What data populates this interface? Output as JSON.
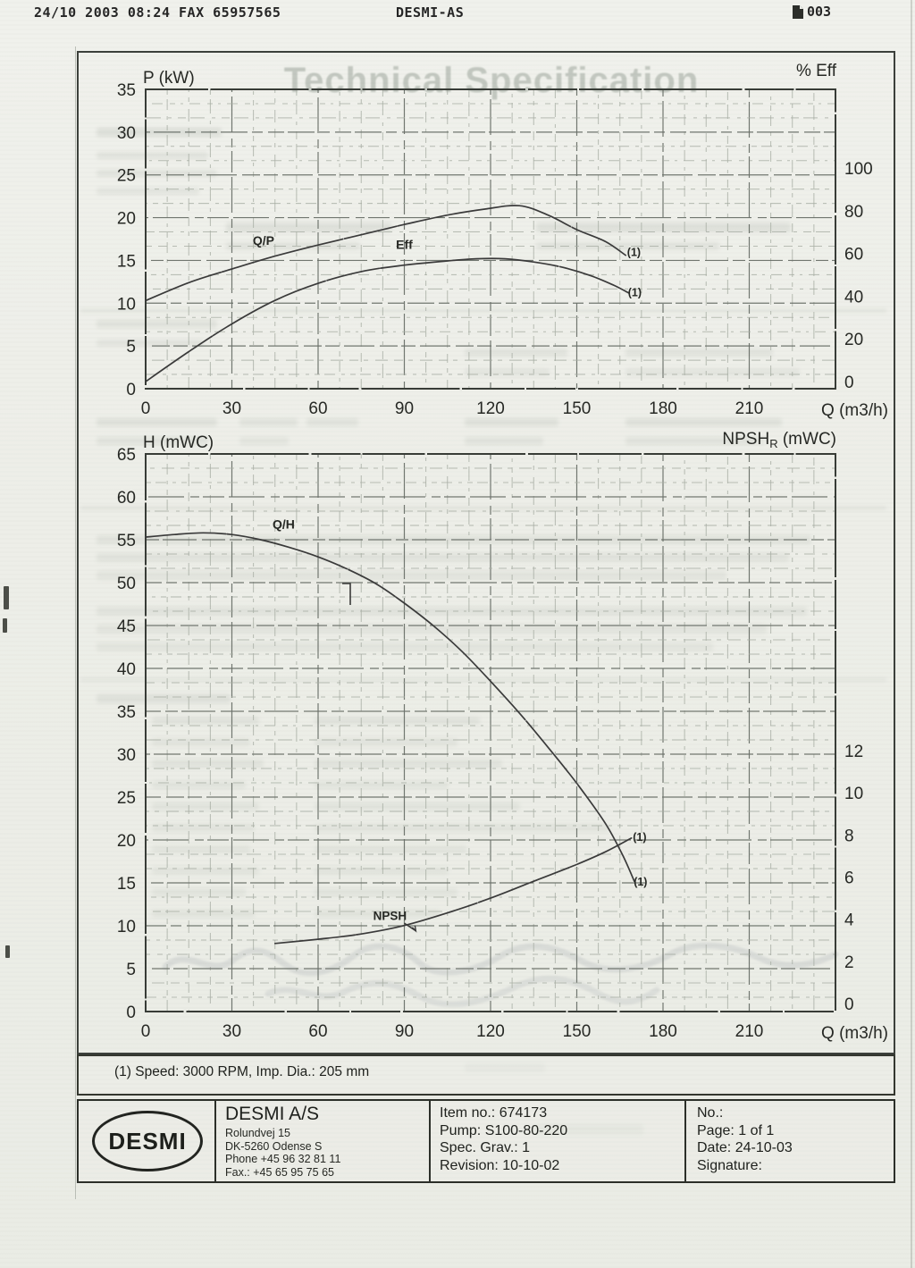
{
  "fax_header": {
    "datetime_line": "24/10 2003 08:24 FAX 65957565",
    "sender": "DESMI-AS",
    "page_number": "003"
  },
  "watermark_title": "Technical Specification",
  "note_line": "(1) Speed: 3000 RPM, Imp. Dia.: 205 mm",
  "footer": {
    "logo_text": "DESMI",
    "company": {
      "name": "DESMI A/S",
      "address_lines": [
        "Rolundvej 15",
        "DK-5260 Odense S",
        "Phone  +45 96 32 81 11",
        "Fax.:  +45 65 95 75 65"
      ]
    },
    "item": {
      "lines": [
        "Item no.: 674173",
        "Pump: S100-80-220",
        "Spec. Grav.: 1",
        "Revision: 10-10-02"
      ]
    },
    "meta": {
      "lines": [
        "No.:",
        "Page: 1 of 1",
        "Date: 24-10-03",
        "Signature:"
      ]
    }
  },
  "chart_data": [
    {
      "id": "power_efficiency",
      "type": "line",
      "title": "Pump power and efficiency curves",
      "x": {
        "label": "Q (m3/h)",
        "ticks": [
          0,
          30,
          60,
          90,
          120,
          150,
          180,
          210
        ],
        "range": [
          0,
          240
        ]
      },
      "y_left": {
        "label": "P (kW)",
        "ticks": [
          0,
          5,
          10,
          15,
          20,
          25,
          30,
          35
        ],
        "range": [
          0,
          35
        ]
      },
      "y_right": {
        "label": "% Eff",
        "ticks": [
          0,
          20,
          40,
          60,
          80,
          100
        ]
      },
      "grid": true,
      "series": [
        {
          "name": "Q/P",
          "axis": "left",
          "points": [
            [
              0,
              10.3
            ],
            [
              15,
              12.4
            ],
            [
              30,
              14.0
            ],
            [
              45,
              15.5
            ],
            [
              60,
              16.8
            ],
            [
              75,
              18.0
            ],
            [
              90,
              19.2
            ],
            [
              105,
              20.3
            ],
            [
              118,
              21.0
            ],
            [
              130,
              21.4
            ],
            [
              140,
              20.3
            ],
            [
              150,
              18.6
            ],
            [
              160,
              17.2
            ],
            [
              167,
              15.6
            ]
          ]
        },
        {
          "name": "Eff",
          "axis": "right",
          "points": [
            [
              0,
              0
            ],
            [
              15,
              14
            ],
            [
              30,
              27
            ],
            [
              45,
              38
            ],
            [
              60,
              46
            ],
            [
              75,
              51.5
            ],
            [
              90,
              54.5
            ],
            [
              105,
              56.5
            ],
            [
              115,
              57.5
            ],
            [
              125,
              57.5
            ],
            [
              135,
              56
            ],
            [
              145,
              53.5
            ],
            [
              155,
              49.5
            ],
            [
              163,
              45
            ],
            [
              168,
              41.5
            ]
          ]
        }
      ],
      "annotations": [
        {
          "text": "Q/P",
          "q": 41,
          "v": 16.8,
          "axis": "left",
          "anchor": "middle",
          "size": 14,
          "bold": true
        },
        {
          "text": "Eff",
          "q": 90,
          "v": 16.35,
          "axis": "left",
          "anchor": "middle",
          "size": 14,
          "bold": true
        },
        {
          "text": "(1)",
          "q": 167.5,
          "v": 15.5,
          "axis": "left",
          "anchor": "start",
          "size": 12.5,
          "bold": true
        },
        {
          "text": "(1)",
          "q": 167.8,
          "v": 10.8,
          "axis": "left",
          "anchor": "start",
          "size": 12.5,
          "bold": true
        }
      ]
    },
    {
      "id": "head_npsh",
      "type": "line",
      "title": "Pump head and NPSH curves",
      "x": {
        "label": "Q (m3/h)",
        "ticks": [
          0,
          30,
          60,
          90,
          120,
          150,
          180,
          210
        ],
        "range": [
          0,
          240
        ]
      },
      "y_left": {
        "label": "H (mWC)",
        "ticks": [
          0,
          5,
          10,
          15,
          20,
          25,
          30,
          35,
          40,
          45,
          50,
          55,
          60,
          65
        ],
        "range": [
          0,
          65
        ]
      },
      "y_right": {
        "label": "NPSHR (mWC)",
        "label_parts": {
          "pre": "NPSH",
          "sub": "R",
          "post": " (mWC)"
        },
        "ticks": [
          0,
          2,
          4,
          6,
          8,
          10,
          12
        ]
      },
      "grid": true,
      "series": [
        {
          "name": "Q/H",
          "axis": "left",
          "points": [
            [
              0,
              55.3
            ],
            [
              10,
              55.6
            ],
            [
              20,
              55.8
            ],
            [
              30,
              55.6
            ],
            [
              40,
              55.0
            ],
            [
              50,
              54.1
            ],
            [
              60,
              53.0
            ],
            [
              70,
              51.6
            ],
            [
              80,
              49.9
            ],
            [
              90,
              47.6
            ],
            [
              100,
              45.0
            ],
            [
              110,
              42.0
            ],
            [
              120,
              38.5
            ],
            [
              130,
              34.8
            ],
            [
              140,
              30.8
            ],
            [
              150,
              26.6
            ],
            [
              160,
              21.9
            ],
            [
              166,
              18.2
            ],
            [
              170,
              15.2
            ]
          ]
        },
        {
          "name": "NPSH",
          "axis": "right",
          "points": [
            [
              45,
              2.85
            ],
            [
              60,
              3.05
            ],
            [
              75,
              3.3
            ],
            [
              90,
              3.7
            ],
            [
              105,
              4.3
            ],
            [
              120,
              5.0
            ],
            [
              135,
              5.8
            ],
            [
              150,
              6.6
            ],
            [
              160,
              7.2
            ],
            [
              169,
              7.85
            ]
          ]
        },
        {
          "name": "duty-marker",
          "axis": "left",
          "style": "marker",
          "points": [
            [
              68.4,
              49.9
            ],
            [
              71.2,
              49.9
            ],
            [
              71.2,
              47.4
            ]
          ]
        }
      ],
      "annotations": [
        {
          "text": "Q/H",
          "q": 48,
          "v": 56.3,
          "axis": "left",
          "anchor": "middle",
          "size": 14,
          "bold": true
        },
        {
          "text": "NPSH",
          "q": 85,
          "v": 10.7,
          "axis": "left",
          "anchor": "middle",
          "size": 13.5,
          "bold": true,
          "arrow": [
            [
              90,
              10.3
            ],
            [
              94,
              9.4
            ]
          ]
        },
        {
          "text": "(1)",
          "q": 169.5,
          "v": 19.9,
          "axis": "left",
          "anchor": "start",
          "size": 12.5,
          "bold": true
        },
        {
          "text": "(1)",
          "q": 169.8,
          "v": 14.7,
          "axis": "left",
          "anchor": "start",
          "size": 12.5,
          "bold": true
        }
      ]
    }
  ]
}
